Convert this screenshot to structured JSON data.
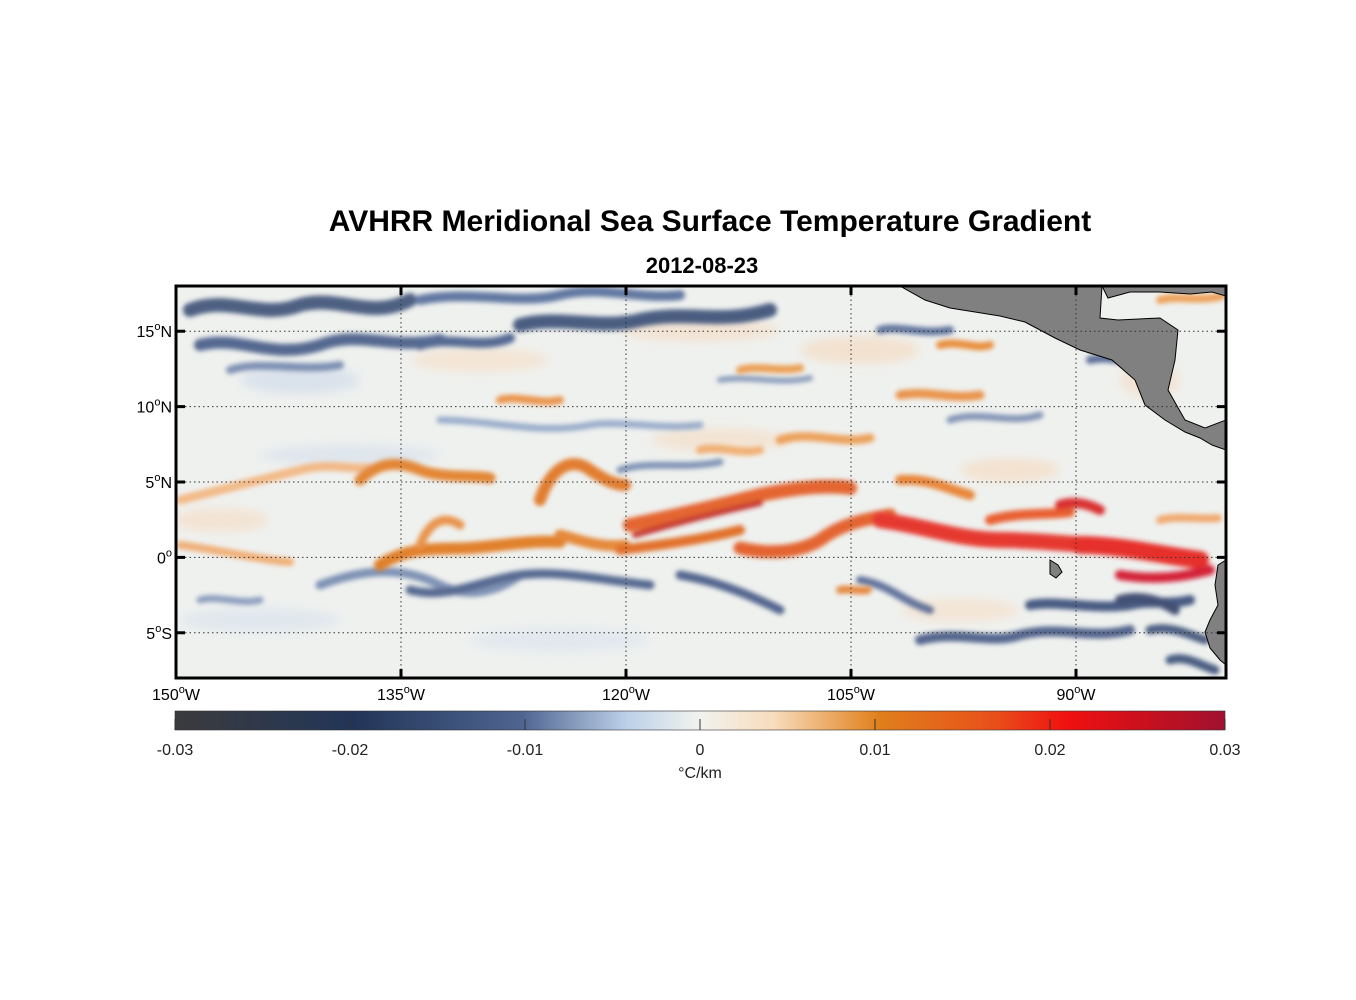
{
  "title": "AVHRR Meridional Sea Surface Temperature Gradient",
  "subtitle": "2012-08-23",
  "map": {
    "extent": {
      "lon_min": -150,
      "lon_max": -80,
      "lat_min": -8,
      "lat_max": 18
    },
    "lat_ticks": [
      {
        "value": 15,
        "num": "15",
        "hemi": "N"
      },
      {
        "value": 10,
        "num": "10",
        "hemi": "N"
      },
      {
        "value": 5,
        "num": "5",
        "hemi": "N"
      },
      {
        "value": 0,
        "num": "0",
        "hemi": ""
      },
      {
        "value": -5,
        "num": "5",
        "hemi": "S"
      }
    ],
    "lon_ticks": [
      {
        "value": -150,
        "num": "150",
        "hemi": "W"
      },
      {
        "value": -135,
        "num": "135",
        "hemi": "W"
      },
      {
        "value": -120,
        "num": "120",
        "hemi": "W"
      },
      {
        "value": -105,
        "num": "105",
        "hemi": "W"
      },
      {
        "value": -90,
        "num": "90",
        "hemi": "W"
      }
    ],
    "degree_symbol": "o",
    "land_color": "#808080",
    "colors": {
      "strong_negative": "#1f3259",
      "neutral": "#eef0ee",
      "positive": "#e06c10",
      "strong_positive": "#e31a1c"
    },
    "colorbar": {
      "min": -0.03,
      "max": 0.03,
      "ticks": [
        "-0.03",
        "-0.02",
        "-0.01",
        "0",
        "0.01",
        "0.02",
        "0.03"
      ],
      "unit_label": "°C/km"
    }
  }
}
